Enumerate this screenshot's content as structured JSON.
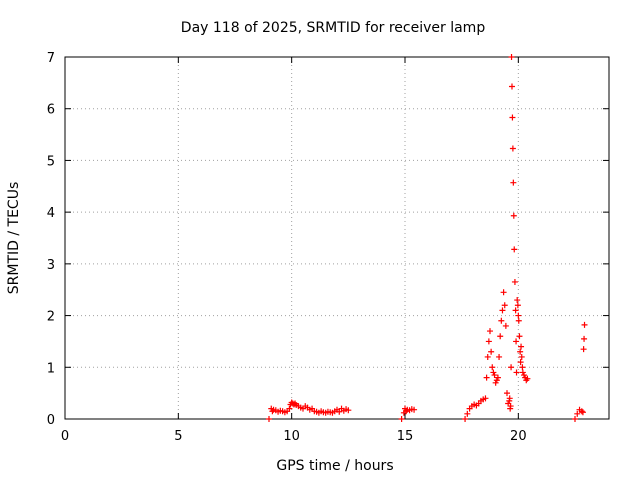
{
  "chart_data": {
    "type": "scatter",
    "title": "Day 118 of 2025, SRMTID for receiver lamp",
    "xlabel": "GPS time / hours",
    "ylabel": "SRMTID / TECUs",
    "xlim": [
      0,
      24
    ],
    "ylim": [
      0,
      7
    ],
    "x_ticks": [
      0,
      5,
      10,
      15,
      20
    ],
    "y_ticks": [
      0,
      1,
      2,
      3,
      4,
      5,
      6,
      7
    ],
    "grid": true,
    "marker": "plus",
    "colors": {
      "series": "#ff0000",
      "grid": "#a0a0a0",
      "axis": "#000000"
    },
    "series": [
      {
        "name": "SRMTID",
        "x": [
          9.0,
          9.1,
          9.15,
          9.2,
          9.3,
          9.4,
          9.5,
          9.6,
          9.7,
          9.8,
          9.9,
          9.95,
          10.0,
          10.05,
          10.1,
          10.15,
          10.2,
          10.3,
          10.4,
          10.5,
          10.6,
          10.7,
          10.8,
          10.9,
          11.0,
          11.1,
          11.2,
          11.3,
          11.4,
          11.5,
          11.6,
          11.7,
          11.8,
          11.9,
          12.0,
          12.1,
          12.2,
          12.3,
          12.4,
          12.5,
          14.85,
          14.95,
          15.0,
          15.05,
          15.1,
          15.2,
          15.3,
          15.4,
          17.65,
          17.75,
          17.85,
          17.95,
          18.05,
          18.15,
          18.25,
          18.35,
          18.45,
          18.55,
          18.6,
          18.65,
          18.7,
          18.75,
          18.8,
          18.85,
          18.9,
          18.95,
          19.0,
          19.05,
          19.1,
          19.15,
          19.2,
          19.25,
          19.3,
          19.35,
          19.4,
          19.45,
          19.5,
          19.55,
          19.6,
          19.62,
          19.64,
          19.66,
          19.68,
          19.7,
          19.72,
          19.74,
          19.76,
          19.78,
          19.8,
          19.82,
          19.85,
          19.88,
          19.9,
          19.92,
          19.95,
          19.98,
          20.0,
          20.02,
          20.05,
          20.08,
          20.1,
          20.12,
          20.15,
          20.18,
          20.2,
          20.25,
          20.3,
          20.35,
          20.4,
          22.5,
          22.6,
          22.7,
          22.8,
          22.85,
          22.88,
          22.9,
          22.92
        ],
        "y": [
          0.0,
          0.2,
          0.15,
          0.18,
          0.17,
          0.14,
          0.16,
          0.15,
          0.13,
          0.15,
          0.2,
          0.28,
          0.32,
          0.3,
          0.28,
          0.3,
          0.27,
          0.25,
          0.22,
          0.2,
          0.25,
          0.22,
          0.18,
          0.2,
          0.15,
          0.14,
          0.12,
          0.15,
          0.13,
          0.12,
          0.14,
          0.13,
          0.12,
          0.15,
          0.18,
          0.14,
          0.2,
          0.16,
          0.19,
          0.17,
          0.0,
          0.12,
          0.2,
          0.15,
          0.18,
          0.17,
          0.19,
          0.18,
          0.0,
          0.1,
          0.2,
          0.25,
          0.28,
          0.26,
          0.3,
          0.35,
          0.38,
          0.4,
          0.8,
          1.2,
          1.5,
          1.7,
          1.3,
          1.0,
          0.9,
          0.85,
          0.7,
          0.75,
          0.8,
          1.2,
          1.6,
          1.9,
          2.1,
          2.45,
          2.2,
          1.8,
          0.5,
          0.3,
          0.35,
          0.4,
          0.2,
          0.25,
          1.0,
          7.0,
          6.43,
          5.83,
          5.23,
          4.57,
          3.93,
          3.28,
          2.65,
          2.1,
          1.5,
          0.9,
          2.3,
          2.2,
          2.0,
          1.9,
          1.6,
          1.3,
          1.1,
          1.4,
          1.2,
          1.0,
          0.9,
          0.85,
          0.8,
          0.75,
          0.78,
          0.0,
          0.1,
          0.18,
          0.15,
          0.13,
          1.35,
          1.55,
          1.82
        ]
      }
    ]
  }
}
